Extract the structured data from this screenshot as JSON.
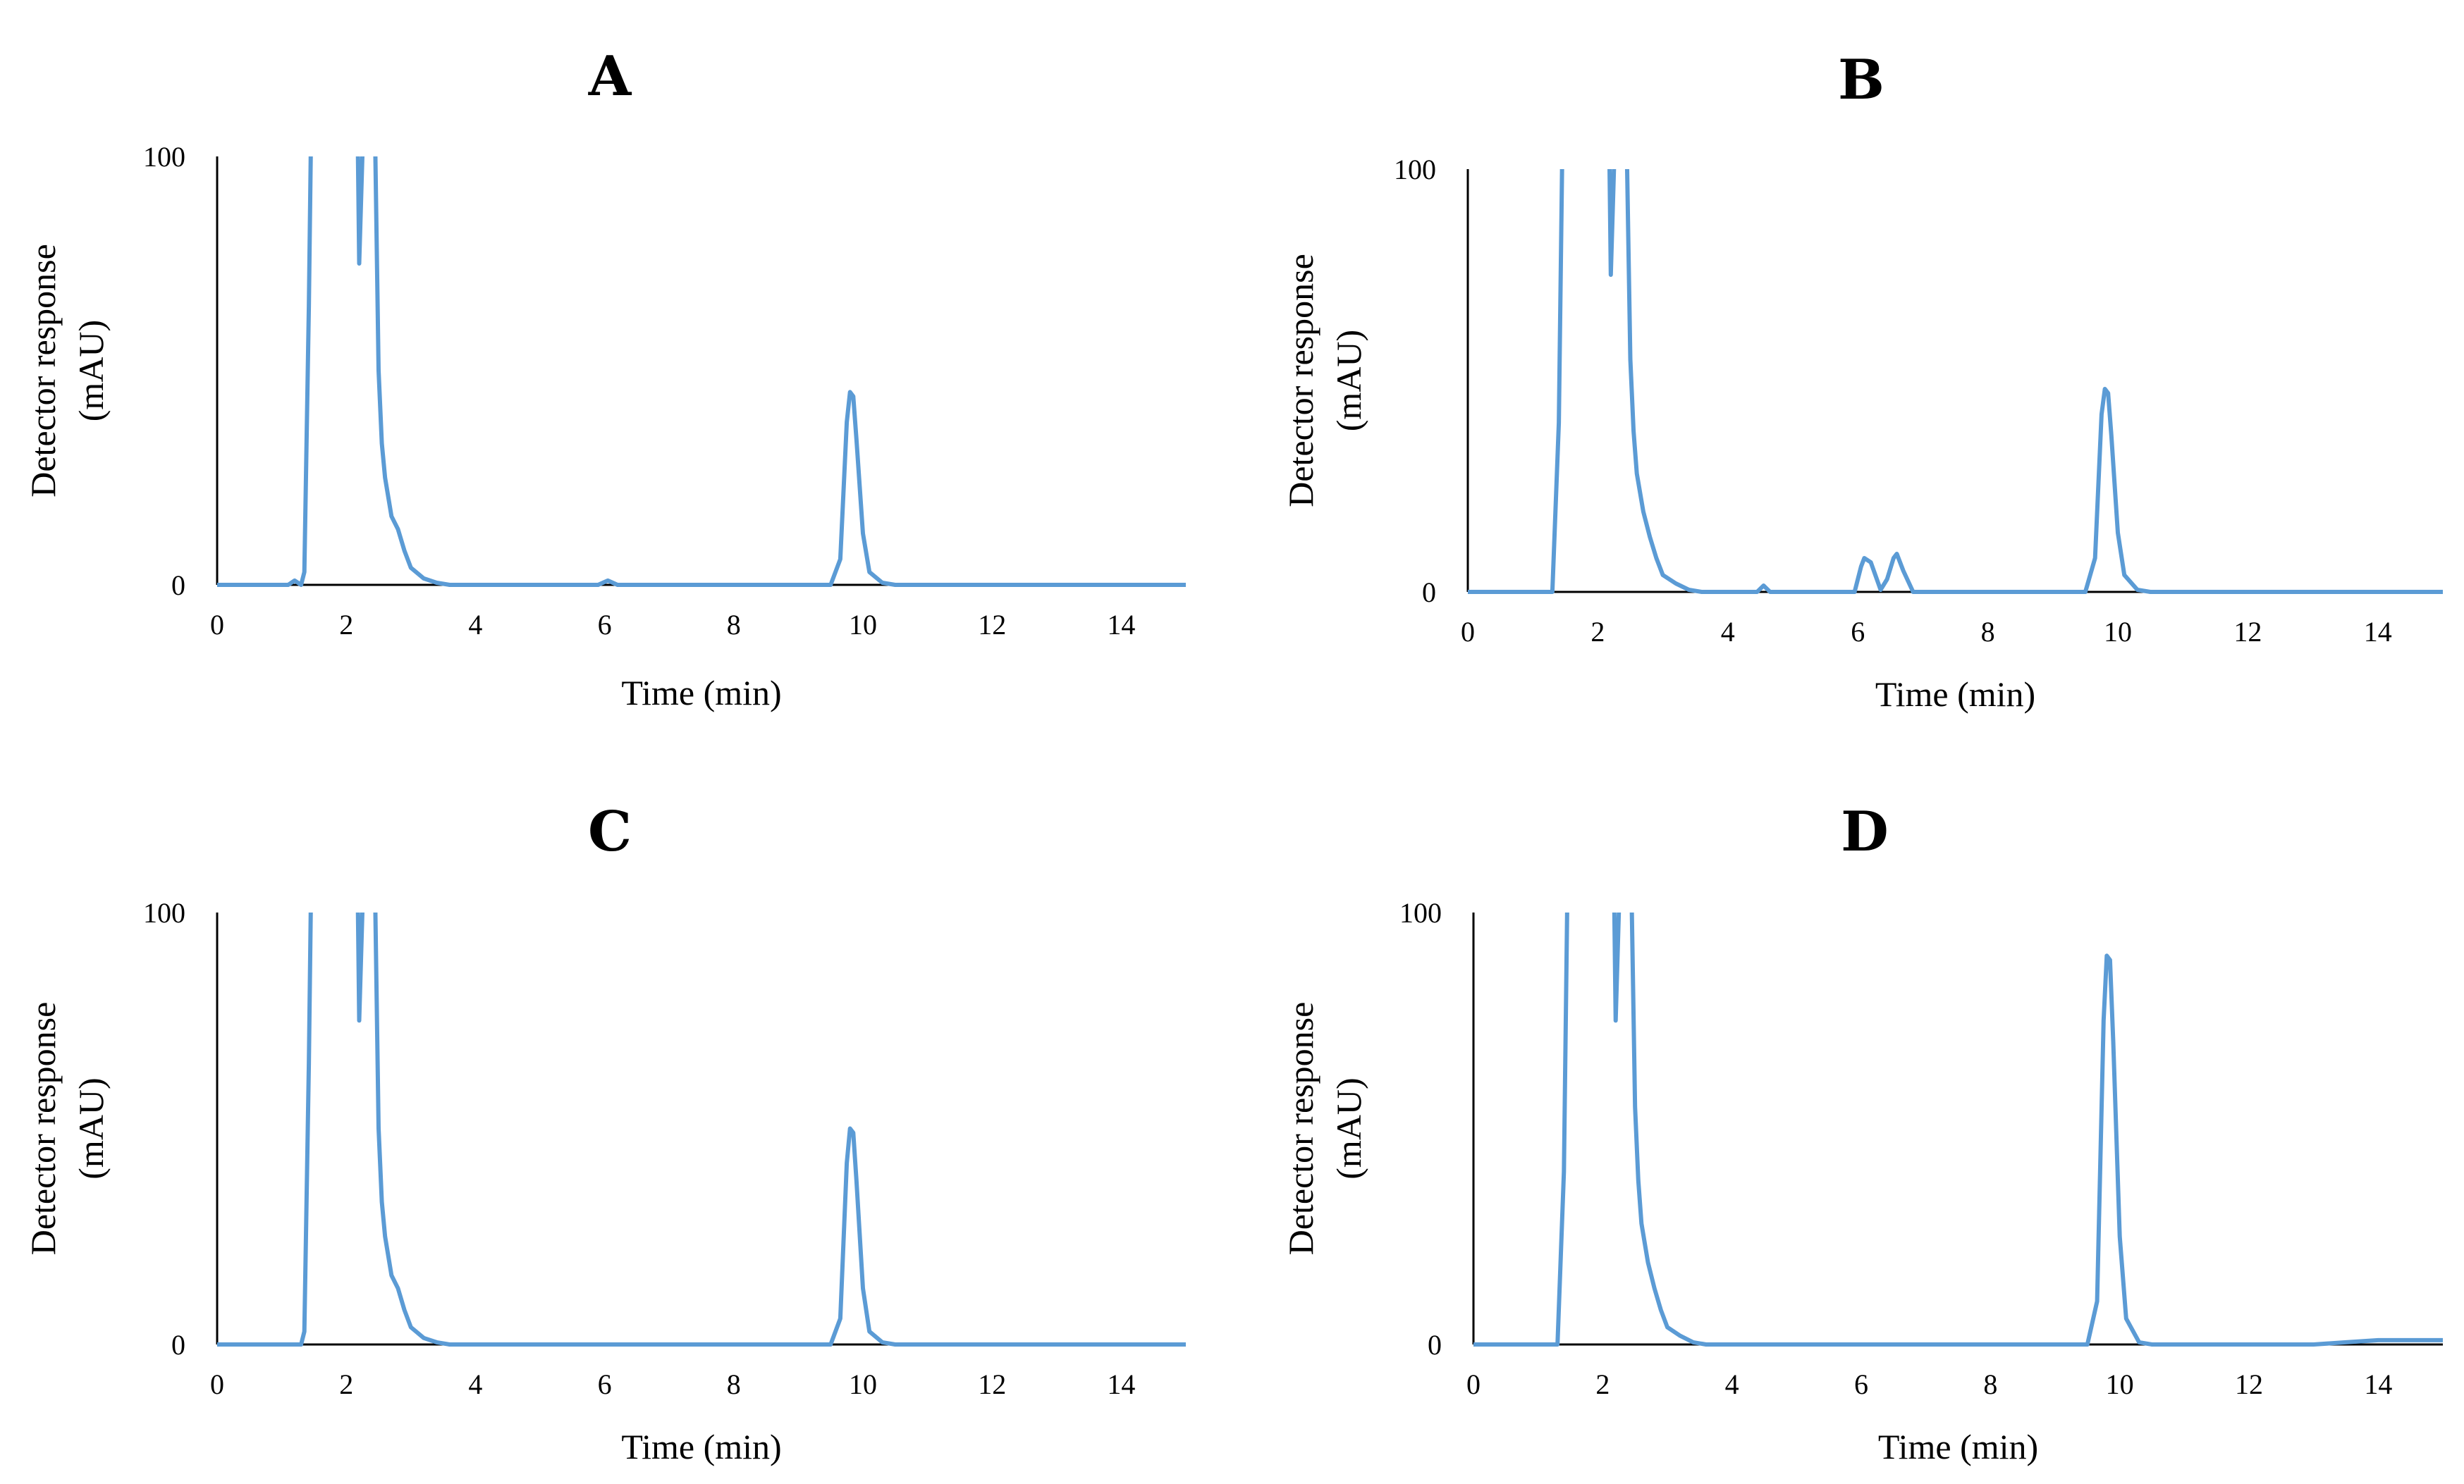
{
  "colors": {
    "trace": "#5b9bd5",
    "axis": "#000000"
  },
  "chart_data": [
    {
      "type": "line",
      "panel": "A",
      "title": "A",
      "xlabel": "Time (min)",
      "ylabel_lines": [
        "Detector response",
        "(mAU)"
      ],
      "xlim": [
        0,
        15
      ],
      "ylim": [
        0,
        100
      ],
      "xticks": [
        0,
        2,
        4,
        6,
        8,
        10,
        12,
        14
      ],
      "yticks": [
        0,
        100
      ],
      "grid": false,
      "legend": "none",
      "x": [
        0,
        1.1,
        1.2,
        1.3,
        1.35,
        1.42,
        1.45,
        1.5,
        2.18,
        2.2,
        2.25,
        2.35,
        2.4,
        2.45,
        2.5,
        2.55,
        2.6,
        2.7,
        2.8,
        2.9,
        3.0,
        3.2,
        3.4,
        3.6,
        5.9,
        6.05,
        6.2,
        9.5,
        9.65,
        9.75,
        9.8,
        9.85,
        9.9,
        10.0,
        10.1,
        10.3,
        10.5,
        15
      ],
      "y": [
        0,
        0,
        1,
        0,
        3,
        65,
        100,
        100,
        100,
        75,
        100,
        100,
        100,
        100,
        50,
        33,
        25,
        16,
        13,
        8,
        4,
        1.5,
        0.5,
        0,
        0,
        1,
        0,
        0,
        6,
        38,
        45,
        44,
        34,
        12,
        3,
        0.5,
        0,
        0
      ]
    },
    {
      "type": "line",
      "panel": "B",
      "title": "B",
      "xlabel": "Time (min)",
      "ylabel_lines": [
        "Detector response",
        "(mAU)"
      ],
      "xlim": [
        0,
        15
      ],
      "ylim": [
        0,
        100
      ],
      "xticks": [
        0,
        2,
        4,
        6,
        8,
        10,
        12,
        14
      ],
      "yticks": [
        0,
        100
      ],
      "grid": false,
      "legend": "none",
      "x": [
        0,
        1.3,
        1.4,
        1.45,
        1.5,
        2.18,
        2.2,
        2.25,
        2.35,
        2.4,
        2.45,
        2.5,
        2.55,
        2.6,
        2.7,
        2.8,
        2.9,
        3.0,
        3.2,
        3.4,
        3.6,
        4.45,
        4.55,
        4.65,
        5.95,
        6.05,
        6.1,
        6.2,
        6.35,
        6.45,
        6.55,
        6.6,
        6.7,
        6.85,
        9.5,
        9.65,
        9.75,
        9.8,
        9.85,
        9.9,
        10.0,
        10.1,
        10.3,
        10.5,
        15
      ],
      "y": [
        0,
        0,
        40,
        100,
        100,
        100,
        75,
        100,
        100,
        100,
        100,
        55,
        38,
        28,
        19,
        13,
        8,
        4,
        2,
        0.5,
        0,
        0,
        1.5,
        0,
        0,
        6,
        8,
        7,
        0.5,
        3,
        8,
        9,
        5,
        0,
        0,
        8,
        42,
        48,
        47,
        37,
        14,
        4,
        0.5,
        0,
        0
      ]
    },
    {
      "type": "line",
      "panel": "C",
      "title": "C",
      "xlabel": "Time (min)",
      "ylabel_lines": [
        "Detector response",
        "(mAU)"
      ],
      "xlim": [
        0,
        15
      ],
      "ylim": [
        0,
        100
      ],
      "xticks": [
        0,
        2,
        4,
        6,
        8,
        10,
        12,
        14
      ],
      "yticks": [
        0,
        100
      ],
      "grid": false,
      "legend": "none",
      "x": [
        0,
        1.3,
        1.35,
        1.42,
        1.45,
        1.5,
        2.18,
        2.2,
        2.25,
        2.35,
        2.4,
        2.45,
        2.5,
        2.55,
        2.6,
        2.7,
        2.8,
        2.9,
        3.0,
        3.2,
        3.4,
        3.6,
        9.5,
        9.65,
        9.75,
        9.8,
        9.85,
        9.9,
        10.0,
        10.1,
        10.3,
        10.5,
        15
      ],
      "y": [
        0,
        0,
        3,
        65,
        100,
        100,
        100,
        75,
        100,
        100,
        100,
        100,
        50,
        33,
        25,
        16,
        13,
        8,
        4,
        1.5,
        0.5,
        0,
        0,
        6,
        42,
        50,
        49,
        38,
        13,
        3,
        0.5,
        0,
        0
      ]
    },
    {
      "type": "line",
      "panel": "D",
      "title": "D",
      "xlabel": "Time (min)",
      "ylabel_lines": [
        "Detector response",
        "(mAU)"
      ],
      "xlim": [
        0,
        15
      ],
      "ylim": [
        0,
        100
      ],
      "xticks": [
        0,
        2,
        4,
        6,
        8,
        10,
        12,
        14
      ],
      "yticks": [
        0,
        100
      ],
      "grid": false,
      "legend": "none",
      "x": [
        0,
        1.3,
        1.4,
        1.45,
        1.5,
        2.18,
        2.2,
        2.25,
        2.35,
        2.4,
        2.45,
        2.5,
        2.55,
        2.6,
        2.7,
        2.8,
        2.9,
        3.0,
        3.2,
        3.4,
        3.6,
        9.5,
        9.65,
        9.75,
        9.8,
        9.85,
        9.9,
        10.0,
        10.1,
        10.3,
        10.5,
        13.0,
        13.5,
        14.0,
        15
      ],
      "y": [
        0,
        0,
        40,
        100,
        100,
        100,
        75,
        100,
        100,
        100,
        100,
        55,
        38,
        28,
        19,
        13,
        8,
        4,
        2,
        0.5,
        0,
        0,
        10,
        75,
        90,
        89,
        70,
        25,
        6,
        0.5,
        0,
        0,
        0.5,
        1,
        1
      ]
    }
  ]
}
